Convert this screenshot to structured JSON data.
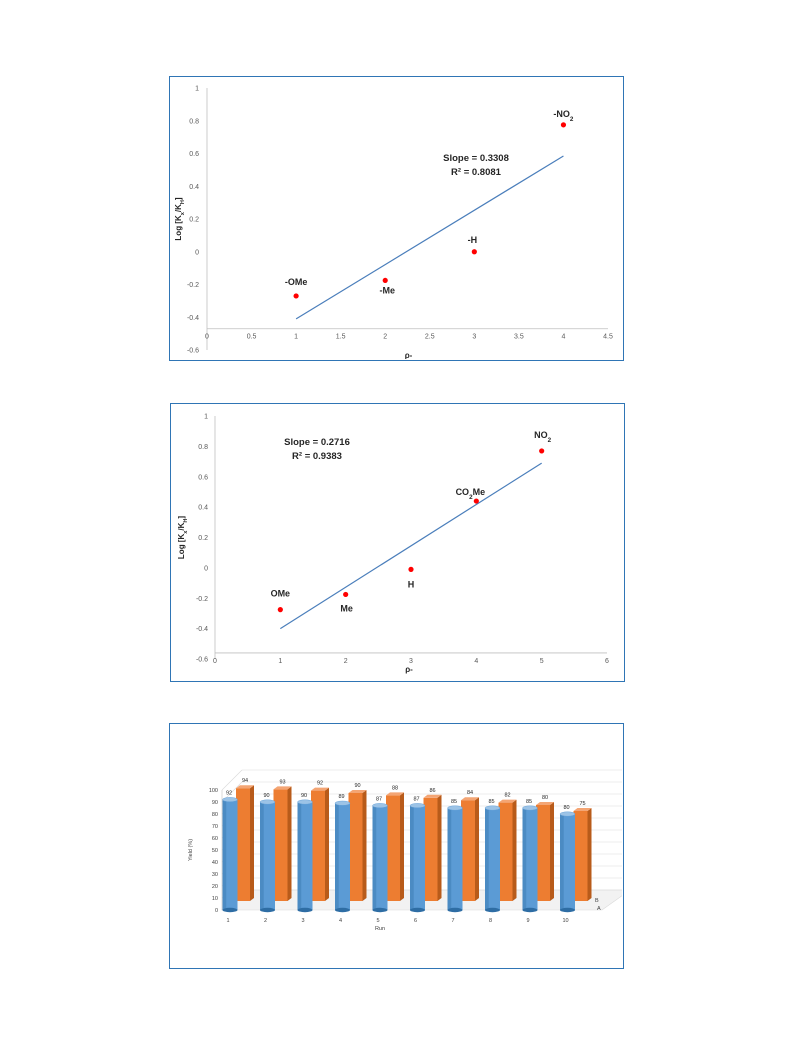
{
  "chart_data": [
    {
      "type": "scatter",
      "xlabel": "ρ-",
      "ylabel_main": "Log [K",
      "ylabel_sub1": "x",
      "ylabel_mid": "/K",
      "ylabel_sub2": "H",
      "ylabel_end": "]",
      "xlim": [
        0,
        4.5
      ],
      "ylim": [
        -0.6,
        1
      ],
      "x_ticks": [
        "0",
        "0.5",
        "1",
        "1.5",
        "2",
        "2.5",
        "3",
        "3.5",
        "4",
        "4.5"
      ],
      "y_ticks": [
        "-0.6",
        "-0.4",
        "-0.2",
        "0",
        "0.2",
        "0.4",
        "0.6",
        "0.8",
        "1"
      ],
      "points": [
        {
          "x": 1,
          "y": -0.27,
          "label": "-OMe"
        },
        {
          "x": 2,
          "y": -0.175,
          "label": "-Me"
        },
        {
          "x": 3,
          "y": 0.0,
          "label": "-H"
        },
        {
          "x": 4,
          "y": 0.775,
          "label_main": "-NO",
          "label_sub": "2"
        }
      ],
      "trendline": {
        "x": [
          1,
          4
        ],
        "y": [
          -0.41,
          0.585
        ]
      },
      "slope_text": "Slope = 0.3308",
      "r2_text": "R² = 0.8081",
      "grid": false,
      "point_color": "#ff0000",
      "line_color": "#4a7ebb"
    },
    {
      "type": "scatter",
      "xlabel": "ρ-",
      "ylabel_main": "Log [K",
      "ylabel_sub1": "x",
      "ylabel_mid": "/K",
      "ylabel_sub2": "H",
      "ylabel_end": "]",
      "xlim": [
        0,
        6
      ],
      "ylim": [
        -0.6,
        1
      ],
      "x_ticks": [
        "0",
        "1",
        "2",
        "3",
        "4",
        "5",
        "6"
      ],
      "y_ticks": [
        "-0.6",
        "-0.4",
        "-0.2",
        "0",
        "0.2",
        "0.4",
        "0.6",
        "0.8",
        "1"
      ],
      "points": [
        {
          "x": 1,
          "y": -0.275,
          "label": "OMe"
        },
        {
          "x": 2,
          "y": -0.175,
          "label": "Me"
        },
        {
          "x": 3,
          "y": -0.01,
          "label": "H"
        },
        {
          "x": 4,
          "y": 0.44,
          "label_main": "CO",
          "label_sub": "2",
          "label_end": "Me"
        },
        {
          "x": 5,
          "y": 0.77,
          "label_main": "NO",
          "label_sub": "2"
        }
      ],
      "trendline": {
        "x": [
          1,
          5
        ],
        "y": [
          -0.4,
          0.69
        ]
      },
      "slope_text": "Slope = 0.2716",
      "r2_text": "R² = 0.9383",
      "grid": false,
      "point_color": "#ff0000",
      "line_color": "#4a7ebb"
    },
    {
      "type": "bar",
      "style": "3d-cylinder",
      "xlabel": "Run",
      "ylabel": "Yield (%)",
      "ylim": [
        0,
        100
      ],
      "y_ticks": [
        "0",
        "10",
        "20",
        "30",
        "40",
        "50",
        "60",
        "70",
        "80",
        "90",
        "100"
      ],
      "categories": [
        "1",
        "2",
        "3",
        "4",
        "5",
        "6",
        "7",
        "8",
        "9",
        "10"
      ],
      "series": [
        {
          "name": "A",
          "values": [
            92,
            90,
            90,
            89,
            87,
            87,
            85,
            85,
            85,
            80
          ],
          "color": "#5b9bd5"
        },
        {
          "name": "B",
          "values": [
            94,
            93,
            92,
            90,
            88,
            86,
            84,
            82,
            80,
            75
          ],
          "color": "#ed7d31"
        }
      ],
      "grid": true
    }
  ]
}
